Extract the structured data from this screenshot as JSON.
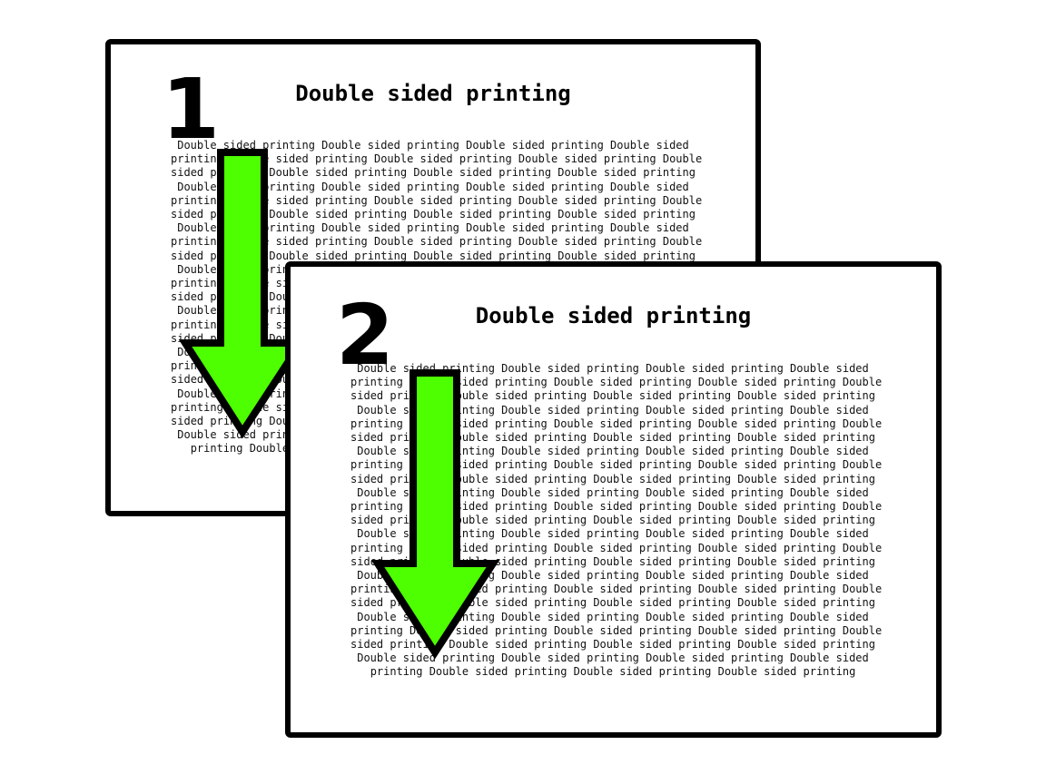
{
  "colors": {
    "arrow_fill": "#4dff00",
    "outline": "#000000",
    "page_background": "#ffffff"
  },
  "pages": [
    {
      "number": "1",
      "title": "Double sided printing",
      "lines": [
        "Double sided printing Double sided printing Double sided printing Double sided",
        "printing Double sided printing Double sided printing Double sided printing Double",
        "sided printing Double sided printing Double sided printing Double sided printing",
        "Double sided printing Double sided printing Double sided printing Double sided",
        "printing Double sided printing Double sided printing Double sided printing Double",
        "sided printing Double sided printing Double sided printing Double sided printing",
        "Double sided printing Double sided printing Double sided printing Double sided",
        "printing Double sided printing Double sided printing Double sided printing Double",
        "sided printing Double sided printing Double sided printing Double sided printing",
        "Double sided printing Double sided printing Double sided printing Double sided",
        "printing Double sided printing Double sided printing Double sided printing Double",
        "sided printing Double sided printing Double sided printing Double sided printing",
        "Double sided printing Double sided printing Double sided printing Double sided",
        "printing Double sided printing Double sided printing Double sided printing Double",
        "sided printing Double sided printing Double sided printing Double sided printing",
        "Double sided printing Double sided printing Double sided printing Double sided",
        "printing Double sided printing Double sided printing Double sided printing Double",
        "sided printing Double sided printing Double sided printing Double sided printing",
        "Double sided printing Double sided printing Double sided printing Double sided",
        "printing Double sided printing Double sided printing Double sided printing Double",
        "sided printing Double sided printing Double sided printing Double sided printing",
        "Double sided printing Double sided printing Double sided printing Double sided",
        "printing Double sided printing Double sided printing Double sided printing"
      ]
    },
    {
      "number": "2",
      "title": "Double sided printing",
      "lines": [
        "Double sided printing Double sided printing Double sided printing Double sided",
        "printing Double sided printing Double sided printing Double sided printing Double",
        "sided printing Double sided printing Double sided printing Double sided printing",
        "Double sided printing Double sided printing Double sided printing Double sided",
        "printing Double sided printing Double sided printing Double sided printing Double",
        "sided printing Double sided printing Double sided printing Double sided printing",
        "Double sided printing Double sided printing Double sided printing Double sided",
        "printing Double sided printing Double sided printing Double sided printing Double",
        "sided printing Double sided printing Double sided printing Double sided printing",
        "Double sided printing Double sided printing Double sided printing Double sided",
        "printing Double sided printing Double sided printing Double sided printing Double",
        "sided printing Double sided printing Double sided printing Double sided printing",
        "Double sided printing Double sided printing Double sided printing Double sided",
        "printing Double sided printing Double sided printing Double sided printing Double",
        "sided printing Double sided printing Double sided printing Double sided printing",
        "Double sided printing Double sided printing Double sided printing Double sided",
        "printing Double sided printing Double sided printing Double sided printing Double",
        "sided printing Double sided printing Double sided printing Double sided printing",
        "Double sided printing Double sided printing Double sided printing Double sided",
        "printing Double sided printing Double sided printing Double sided printing Double",
        "sided printing Double sided printing Double sided printing Double sided printing",
        "Double sided printing Double sided printing Double sided printing Double sided",
        "printing Double sided printing Double sided printing Double sided printing"
      ]
    }
  ]
}
